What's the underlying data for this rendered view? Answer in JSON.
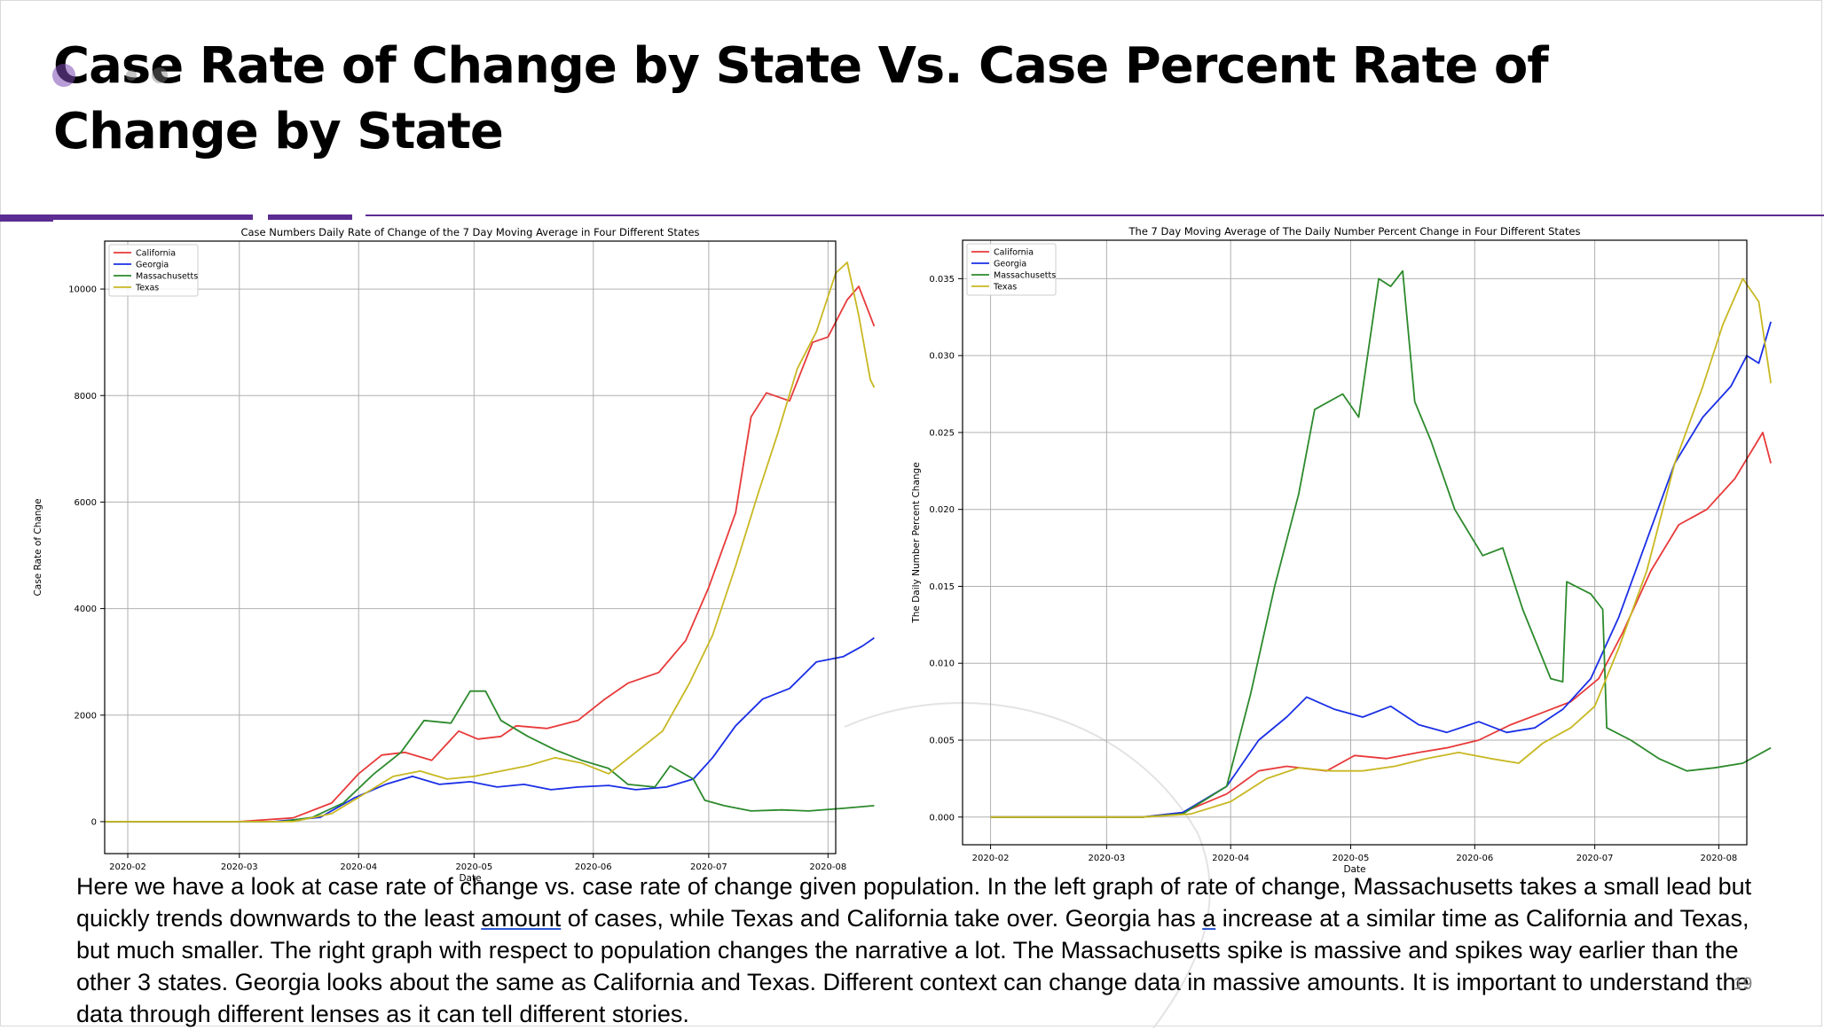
{
  "slide": {
    "title": "Case Rate of Change by State Vs. Case Percent Rate of Change by State",
    "body": {
      "segments": [
        "Here we have a look at case rate of change vs. case rate of change given population.  In the left graph of rate of change,  Massachusetts takes a small lead but quickly trends downwards to the least ",
        "amount",
        " of cases, while Texas and California take over.  Georgia has ",
        "a",
        " increase at a similar time as California and Texas, but much smaller.  The right graph with respect to population changes the narrative a lot.  The Massachusetts spike is massive and spikes way earlier than the other 3 states.  Georgia looks about the same as California and Texas.  Different context can change data in massive amounts.  It is important to understand the data through different lenses as it can tell different stories."
      ]
    },
    "page_number": "19",
    "accent_color": "#5b2c91"
  },
  "chart_data": [
    {
      "type": "line",
      "title": "Case Numbers Daily Rate of Change of the 7 Day Moving Average in Four Different States",
      "xlabel": "Date",
      "ylabel": "Case Rate of Change",
      "xlim": [
        "2020-01-26",
        "2020-08-03"
      ],
      "ylim": [
        -600,
        10900
      ],
      "x_ticks": [
        "2020-02",
        "2020-03",
        "2020-04",
        "2020-05",
        "2020-06",
        "2020-07",
        "2020-08"
      ],
      "y_ticks": [
        0,
        2000,
        4000,
        6000,
        8000,
        10000
      ],
      "y_tick_labels": [
        "0",
        "2000",
        "4000",
        "6000",
        "8000",
        "10000"
      ],
      "grid": true,
      "legend": "top-left",
      "series": [
        {
          "name": "California",
          "color": "#e83a3a",
          "points": [
            [
              "2020-01-26",
              0
            ],
            [
              "2020-03-01",
              0
            ],
            [
              "2020-03-15",
              70
            ],
            [
              "2020-03-25",
              350
            ],
            [
              "2020-04-01",
              900
            ],
            [
              "2020-04-07",
              1250
            ],
            [
              "2020-04-13",
              1300
            ],
            [
              "2020-04-20",
              1150
            ],
            [
              "2020-04-27",
              1700
            ],
            [
              "2020-05-02",
              1550
            ],
            [
              "2020-05-08",
              1600
            ],
            [
              "2020-05-12",
              1800
            ],
            [
              "2020-05-20",
              1750
            ],
            [
              "2020-05-28",
              1900
            ],
            [
              "2020-06-04",
              2300
            ],
            [
              "2020-06-10",
              2600
            ],
            [
              "2020-06-18",
              2800
            ],
            [
              "2020-06-25",
              3400
            ],
            [
              "2020-07-01",
              4400
            ],
            [
              "2020-07-08",
              5800
            ],
            [
              "2020-07-12",
              7600
            ],
            [
              "2020-07-16",
              8050
            ],
            [
              "2020-07-22",
              7900
            ],
            [
              "2020-07-28",
              9000
            ],
            [
              "2020-08-01",
              9100
            ],
            [
              "2020-08-06",
              9800
            ],
            [
              "2020-08-09",
              10050
            ],
            [
              "2020-08-13",
              9300
            ]
          ]
        },
        {
          "name": "Georgia",
          "color": "#1a2fe6",
          "points": [
            [
              "2020-01-26",
              0
            ],
            [
              "2020-03-10",
              0
            ],
            [
              "2020-03-22",
              80
            ],
            [
              "2020-03-31",
              450
            ],
            [
              "2020-04-08",
              700
            ],
            [
              "2020-04-15",
              850
            ],
            [
              "2020-04-22",
              700
            ],
            [
              "2020-04-30",
              750
            ],
            [
              "2020-05-07",
              650
            ],
            [
              "2020-05-14",
              700
            ],
            [
              "2020-05-21",
              600
            ],
            [
              "2020-05-28",
              650
            ],
            [
              "2020-06-05",
              680
            ],
            [
              "2020-06-12",
              600
            ],
            [
              "2020-06-20",
              650
            ],
            [
              "2020-06-27",
              800
            ],
            [
              "2020-07-02",
              1200
            ],
            [
              "2020-07-08",
              1800
            ],
            [
              "2020-07-15",
              2300
            ],
            [
              "2020-07-22",
              2500
            ],
            [
              "2020-07-29",
              3000
            ],
            [
              "2020-08-05",
              3100
            ],
            [
              "2020-08-10",
              3300
            ],
            [
              "2020-08-13",
              3450
            ]
          ]
        },
        {
          "name": "Massachusetts",
          "color": "#2c8a2c",
          "points": [
            [
              "2020-01-26",
              0
            ],
            [
              "2020-03-12",
              0
            ],
            [
              "2020-03-20",
              80
            ],
            [
              "2020-03-28",
              350
            ],
            [
              "2020-04-05",
              900
            ],
            [
              "2020-04-12",
              1300
            ],
            [
              "2020-04-18",
              1900
            ],
            [
              "2020-04-25",
              1850
            ],
            [
              "2020-04-30",
              2450
            ],
            [
              "2020-05-04",
              2450
            ],
            [
              "2020-05-08",
              1900
            ],
            [
              "2020-05-15",
              1600
            ],
            [
              "2020-05-22",
              1350
            ],
            [
              "2020-05-29",
              1150
            ],
            [
              "2020-06-05",
              1000
            ],
            [
              "2020-06-10",
              700
            ],
            [
              "2020-06-17",
              650
            ],
            [
              "2020-06-21",
              1050
            ],
            [
              "2020-06-27",
              800
            ],
            [
              "2020-06-30",
              400
            ],
            [
              "2020-07-05",
              300
            ],
            [
              "2020-07-12",
              200
            ],
            [
              "2020-07-20",
              220
            ],
            [
              "2020-07-27",
              200
            ],
            [
              "2020-08-05",
              250
            ],
            [
              "2020-08-13",
              300
            ]
          ]
        },
        {
          "name": "Texas",
          "color": "#c8b822",
          "points": [
            [
              "2020-01-26",
              0
            ],
            [
              "2020-03-15",
              0
            ],
            [
              "2020-03-25",
              150
            ],
            [
              "2020-04-02",
              500
            ],
            [
              "2020-04-10",
              850
            ],
            [
              "2020-04-17",
              950
            ],
            [
              "2020-04-24",
              800
            ],
            [
              "2020-05-01",
              850
            ],
            [
              "2020-05-08",
              950
            ],
            [
              "2020-05-15",
              1050
            ],
            [
              "2020-05-22",
              1200
            ],
            [
              "2020-05-29",
              1100
            ],
            [
              "2020-06-05",
              900
            ],
            [
              "2020-06-12",
              1300
            ],
            [
              "2020-06-19",
              1700
            ],
            [
              "2020-06-26",
              2600
            ],
            [
              "2020-07-02",
              3500
            ],
            [
              "2020-07-08",
              4800
            ],
            [
              "2020-07-14",
              6200
            ],
            [
              "2020-07-19",
              7300
            ],
            [
              "2020-07-24",
              8500
            ],
            [
              "2020-07-29",
              9200
            ],
            [
              "2020-08-03",
              10300
            ],
            [
              "2020-08-06",
              10500
            ],
            [
              "2020-08-09",
              9500
            ],
            [
              "2020-08-12",
              8300
            ],
            [
              "2020-08-13",
              8150
            ]
          ]
        }
      ]
    },
    {
      "type": "line",
      "title": "The 7 Day Moving Average of The Daily Number Percent Change in Four Different States",
      "xlabel": "Date",
      "ylabel": "The Daily Number Percent Change",
      "xlim": [
        "2020-01-25",
        "2020-08-08"
      ],
      "ylim": [
        -0.0018,
        0.0375
      ],
      "x_ticks": [
        "2020-02",
        "2020-03",
        "2020-04",
        "2020-05",
        "2020-06",
        "2020-07",
        "2020-08"
      ],
      "y_ticks": [
        0,
        0.005,
        0.01,
        0.015,
        0.02,
        0.025,
        0.03,
        0.035
      ],
      "y_tick_labels": [
        "0.000",
        "0.005",
        "0.010",
        "0.015",
        "0.020",
        "0.025",
        "0.030",
        "0.035"
      ],
      "grid": true,
      "legend": "top-left",
      "series": [
        {
          "name": "California",
          "color": "#e83a3a",
          "points": [
            [
              "2020-02-01",
              0
            ],
            [
              "2020-03-10",
              0
            ],
            [
              "2020-03-20",
              0.0003
            ],
            [
              "2020-03-31",
              0.0015
            ],
            [
              "2020-04-08",
              0.003
            ],
            [
              "2020-04-15",
              0.0033
            ],
            [
              "2020-04-25",
              0.003
            ],
            [
              "2020-05-02",
              0.004
            ],
            [
              "2020-05-10",
              0.0038
            ],
            [
              "2020-05-18",
              0.0042
            ],
            [
              "2020-05-25",
              0.0045
            ],
            [
              "2020-06-02",
              0.005
            ],
            [
              "2020-06-10",
              0.006
            ],
            [
              "2020-06-18",
              0.0068
            ],
            [
              "2020-06-25",
              0.0075
            ],
            [
              "2020-07-02",
              0.009
            ],
            [
              "2020-07-08",
              0.012
            ],
            [
              "2020-07-15",
              0.016
            ],
            [
              "2020-07-22",
              0.019
            ],
            [
              "2020-07-29",
              0.02
            ],
            [
              "2020-08-05",
              0.022
            ],
            [
              "2020-08-12",
              0.025
            ],
            [
              "2020-08-14",
              0.023
            ]
          ]
        },
        {
          "name": "Georgia",
          "color": "#1a2fe6",
          "points": [
            [
              "2020-02-01",
              0
            ],
            [
              "2020-03-10",
              0
            ],
            [
              "2020-03-20",
              0.0003
            ],
            [
              "2020-03-31",
              0.002
            ],
            [
              "2020-04-08",
              0.005
            ],
            [
              "2020-04-15",
              0.0065
            ],
            [
              "2020-04-20",
              0.0078
            ],
            [
              "2020-04-27",
              0.007
            ],
            [
              "2020-05-04",
              0.0065
            ],
            [
              "2020-05-11",
              0.0072
            ],
            [
              "2020-05-18",
              0.006
            ],
            [
              "2020-05-25",
              0.0055
            ],
            [
              "2020-06-02",
              0.0062
            ],
            [
              "2020-06-09",
              0.0055
            ],
            [
              "2020-06-16",
              0.0058
            ],
            [
              "2020-06-23",
              0.007
            ],
            [
              "2020-06-30",
              0.009
            ],
            [
              "2020-07-07",
              0.013
            ],
            [
              "2020-07-14",
              0.018
            ],
            [
              "2020-07-21",
              0.023
            ],
            [
              "2020-07-28",
              0.026
            ],
            [
              "2020-08-04",
              0.028
            ],
            [
              "2020-08-08",
              0.03
            ],
            [
              "2020-08-11",
              0.0295
            ],
            [
              "2020-08-14",
              0.0322
            ]
          ]
        },
        {
          "name": "Massachusetts",
          "color": "#2c8a2c",
          "points": [
            [
              "2020-02-01",
              0
            ],
            [
              "2020-03-10",
              0
            ],
            [
              "2020-03-20",
              0.0002
            ],
            [
              "2020-03-31",
              0.002
            ],
            [
              "2020-04-06",
              0.008
            ],
            [
              "2020-04-12",
              0.015
            ],
            [
              "2020-04-18",
              0.021
            ],
            [
              "2020-04-22",
              0.0265
            ],
            [
              "2020-04-29",
              0.0275
            ],
            [
              "2020-05-03",
              0.026
            ],
            [
              "2020-05-08",
              0.035
            ],
            [
              "2020-05-11",
              0.0345
            ],
            [
              "2020-05-14",
              0.0355
            ],
            [
              "2020-05-17",
              0.027
            ],
            [
              "2020-05-21",
              0.0245
            ],
            [
              "2020-05-27",
              0.02
            ],
            [
              "2020-06-03",
              0.017
            ],
            [
              "2020-06-08",
              0.0175
            ],
            [
              "2020-06-13",
              0.0135
            ],
            [
              "2020-06-20",
              0.009
            ],
            [
              "2020-06-23",
              0.0088
            ],
            [
              "2020-06-24",
              0.0153
            ],
            [
              "2020-06-30",
              0.0145
            ],
            [
              "2020-07-03",
              0.0135
            ],
            [
              "2020-07-04",
              0.0058
            ],
            [
              "2020-07-10",
              0.005
            ],
            [
              "2020-07-17",
              0.0038
            ],
            [
              "2020-07-24",
              0.003
            ],
            [
              "2020-07-31",
              0.0032
            ],
            [
              "2020-08-07",
              0.0035
            ],
            [
              "2020-08-14",
              0.0045
            ]
          ]
        },
        {
          "name": "Texas",
          "color": "#c8b822",
          "points": [
            [
              "2020-02-01",
              0
            ],
            [
              "2020-03-10",
              0
            ],
            [
              "2020-03-22",
              0.0002
            ],
            [
              "2020-04-01",
              0.001
            ],
            [
              "2020-04-10",
              0.0025
            ],
            [
              "2020-04-18",
              0.0032
            ],
            [
              "2020-04-26",
              0.003
            ],
            [
              "2020-05-04",
              0.003
            ],
            [
              "2020-05-12",
              0.0033
            ],
            [
              "2020-05-20",
              0.0038
            ],
            [
              "2020-05-28",
              0.0042
            ],
            [
              "2020-06-05",
              0.0038
            ],
            [
              "2020-06-12",
              0.0035
            ],
            [
              "2020-06-18",
              0.0048
            ],
            [
              "2020-06-25",
              0.0058
            ],
            [
              "2020-07-01",
              0.0072
            ],
            [
              "2020-07-07",
              0.011
            ],
            [
              "2020-07-14",
              0.016
            ],
            [
              "2020-07-21",
              0.023
            ],
            [
              "2020-07-28",
              0.028
            ],
            [
              "2020-08-02",
              0.032
            ],
            [
              "2020-08-07",
              0.035
            ],
            [
              "2020-08-11",
              0.0335
            ],
            [
              "2020-08-14",
              0.0282
            ]
          ]
        }
      ]
    }
  ]
}
